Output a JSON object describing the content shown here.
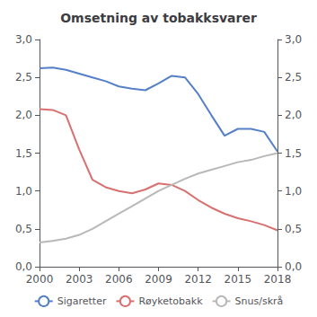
{
  "chart_data": {
    "type": "line",
    "title": "Omsetning av tobakksvarer",
    "x": [
      2000,
      2001,
      2002,
      2003,
      2004,
      2005,
      2006,
      2007,
      2008,
      2009,
      2010,
      2011,
      2012,
      2013,
      2014,
      2015,
      2016,
      2017,
      2018
    ],
    "series": [
      {
        "name": "Sigaretter",
        "color": "#5580c8",
        "values": [
          2.62,
          2.63,
          2.6,
          2.55,
          2.5,
          2.45,
          2.38,
          2.35,
          2.33,
          2.42,
          2.52,
          2.5,
          2.28,
          2.0,
          1.73,
          1.82,
          1.82,
          1.78,
          1.52
        ]
      },
      {
        "name": "Røyketobakk",
        "color": "#d87070",
        "values": [
          2.08,
          2.07,
          2.0,
          1.55,
          1.15,
          1.05,
          1.0,
          0.97,
          1.02,
          1.1,
          1.08,
          1.0,
          0.88,
          0.78,
          0.7,
          0.64,
          0.6,
          0.55,
          0.48
        ]
      },
      {
        "name": "Snus/skrå",
        "color": "#b8b8b8",
        "values": [
          0.32,
          0.34,
          0.37,
          0.42,
          0.5,
          0.6,
          0.7,
          0.8,
          0.9,
          1.0,
          1.08,
          1.16,
          1.23,
          1.28,
          1.33,
          1.38,
          1.41,
          1.46,
          1.5
        ]
      }
    ],
    "xlim": [
      2000,
      2018
    ],
    "xticks": [
      2000,
      2003,
      2006,
      2009,
      2012,
      2015,
      2018
    ],
    "ylim": [
      0.0,
      3.0
    ],
    "yticks": [
      {
        "value": 0.0,
        "label": "0,0"
      },
      {
        "value": 0.5,
        "label": "0,5"
      },
      {
        "value": 1.0,
        "label": "1,0"
      },
      {
        "value": 1.5,
        "label": "1,5"
      },
      {
        "value": 2.0,
        "label": "2,0"
      },
      {
        "value": 2.5,
        "label": "2,5"
      },
      {
        "value": 3.0,
        "label": "3,0"
      }
    ],
    "y2lim": [
      0.0,
      3.0
    ],
    "y2ticks": [
      {
        "value": 0.0,
        "label": "0,0"
      },
      {
        "value": 0.5,
        "label": "0,5"
      },
      {
        "value": 1.0,
        "label": "1,0"
      },
      {
        "value": 1.5,
        "label": "1,5"
      },
      {
        "value": 2.0,
        "label": "2,0"
      },
      {
        "value": 2.5,
        "label": "2,5"
      },
      {
        "value": 3.0,
        "label": "3,0"
      }
    ],
    "grid": false,
    "legend": "bottom"
  }
}
